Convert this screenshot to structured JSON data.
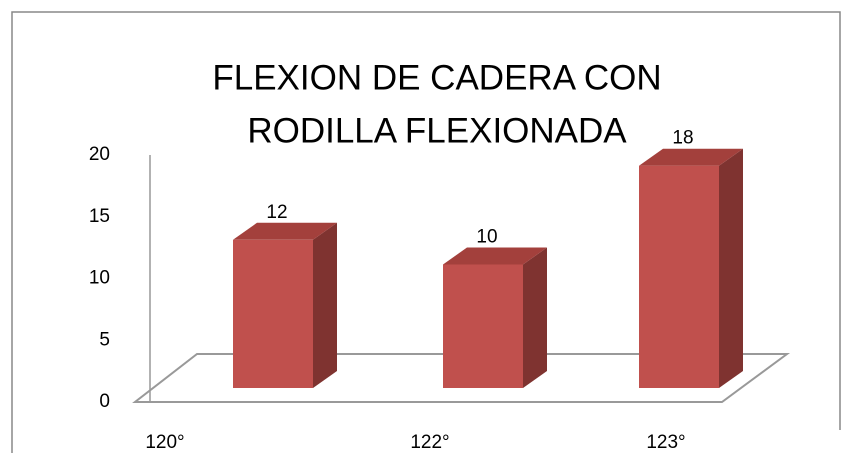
{
  "chart_data": {
    "type": "bar3d",
    "title": [
      "FLEXION DE CADERA CON",
      "RODILLA FLEXIONADA"
    ],
    "categories": [
      "120°",
      "122°",
      "123°"
    ],
    "values": [
      12,
      10,
      18
    ],
    "color": "#c0504d",
    "ylim": [
      0,
      20
    ],
    "yticks": [
      0,
      5,
      10,
      15,
      20
    ]
  }
}
